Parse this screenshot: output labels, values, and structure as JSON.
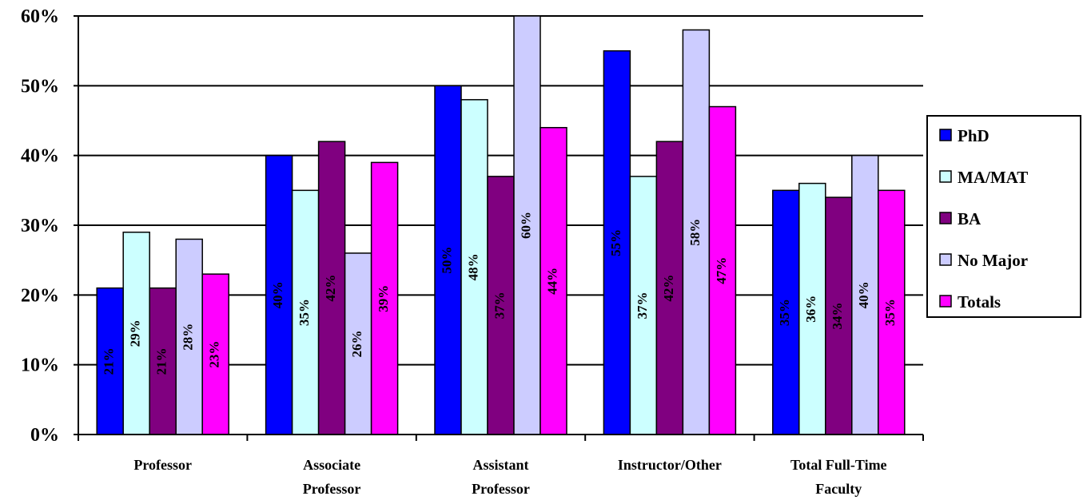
{
  "chart_data": {
    "type": "bar",
    "categories": [
      "Professor",
      "Associate\nProfessor",
      "Assistant\nProfessor",
      "Instructor/Other",
      "Total Full-Time\nFaculty"
    ],
    "series": [
      {
        "name": "PhD",
        "color": "#0000ff",
        "label_color": "#ffffff",
        "values": [
          21,
          40,
          50,
          55,
          35
        ],
        "value_labels": [
          "21%",
          "40%",
          "50%",
          "55%",
          "35%"
        ]
      },
      {
        "name": "MA/MAT",
        "color": "#ccffff",
        "label_color": "#000000",
        "values": [
          29,
          35,
          48,
          37,
          36
        ],
        "value_labels": [
          "29%",
          "35%",
          "48%",
          "37%",
          "36%"
        ]
      },
      {
        "name": "BA",
        "color": "#800080",
        "label_color": "#ffffff",
        "values": [
          21,
          42,
          37,
          42,
          34
        ],
        "value_labels": [
          "21%",
          "42%",
          "37%",
          "42%",
          "34%"
        ]
      },
      {
        "name": "No Major",
        "color": "#ccccff",
        "label_color": "#000000",
        "values": [
          28,
          26,
          60,
          58,
          40
        ],
        "value_labels": [
          "28%",
          "26%",
          "60%",
          "58%",
          "40%"
        ]
      },
      {
        "name": "Totals",
        "color": "#ff00ff",
        "label_color": "#ffffff",
        "values": [
          23,
          39,
          44,
          47,
          35
        ],
        "value_labels": [
          "23%",
          "39%",
          "44%",
          "47%",
          "35%"
        ]
      }
    ],
    "ylim": [
      0,
      60
    ],
    "yticks": [
      {
        "value": 0,
        "label": "0%"
      },
      {
        "value": 10,
        "label": "10%"
      },
      {
        "value": 20,
        "label": "20%"
      },
      {
        "value": 30,
        "label": "30%"
      },
      {
        "value": 40,
        "label": "40%"
      },
      {
        "value": 50,
        "label": "50%"
      },
      {
        "value": 60,
        "label": "60%"
      }
    ],
    "grid": true,
    "legend": "right"
  }
}
